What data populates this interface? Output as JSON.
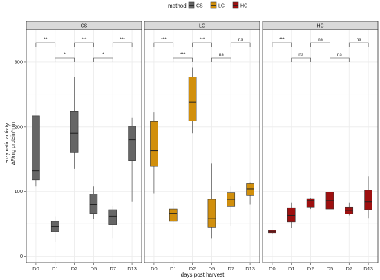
{
  "legend": {
    "title": "method",
    "items": [
      {
        "label": "CS",
        "color": "#666666"
      },
      {
        "label": "LC",
        "color": "#d18f0c"
      },
      {
        "label": "HC",
        "color": "#9e1010"
      }
    ]
  },
  "chart_data": {
    "type": "boxplot",
    "xlabel": "days post harvest",
    "ylabel_line1": "enzymatic activity",
    "ylabel_line2": "ΔF/mg protein*min",
    "ylim": [
      -10,
      350
    ],
    "yticks": [
      0,
      100,
      200,
      300
    ],
    "grid": true,
    "legend_position": "top",
    "categories": [
      "D0",
      "D1",
      "D2",
      "D5",
      "D7",
      "D13"
    ],
    "panels": [
      {
        "name": "CS",
        "color": "#666666",
        "boxes": [
          {
            "cat": "D0",
            "min": 108,
            "q1": 118,
            "median": 132,
            "q3": 217,
            "max": 217
          },
          {
            "cat": "D1",
            "min": 22,
            "q1": 38,
            "median": 46,
            "q3": 54,
            "max": 62
          },
          {
            "cat": "D2",
            "min": 135,
            "q1": 160,
            "median": 190,
            "q3": 224,
            "max": 277
          },
          {
            "cat": "D5",
            "min": 58,
            "q1": 66,
            "median": 80,
            "q3": 96,
            "max": 108
          },
          {
            "cat": "D7",
            "min": 28,
            "q1": 49,
            "median": 62,
            "q3": 72,
            "max": 78
          },
          {
            "cat": "D13",
            "min": 84,
            "q1": 148,
            "median": 180,
            "q3": 201,
            "max": 214
          }
        ],
        "brackets": [
          {
            "from": "D0",
            "to": "D1",
            "label": "**",
            "level": 0
          },
          {
            "from": "D1",
            "to": "D2",
            "label": "*",
            "level": 1
          },
          {
            "from": "D2",
            "to": "D5",
            "label": "***",
            "level": 0
          },
          {
            "from": "D5",
            "to": "D7",
            "label": "*",
            "level": 1
          },
          {
            "from": "D7",
            "to": "D13",
            "label": "***",
            "level": 0
          }
        ]
      },
      {
        "name": "LC",
        "color": "#d18f0c",
        "boxes": [
          {
            "cat": "D0",
            "min": 97,
            "q1": 139,
            "median": 163,
            "q3": 208,
            "max": 222
          },
          {
            "cat": "D1",
            "min": 53,
            "q1": 54,
            "median": 66,
            "q3": 73,
            "max": 86
          },
          {
            "cat": "D2",
            "min": 190,
            "q1": 209,
            "median": 238,
            "q3": 277,
            "max": 292
          },
          {
            "cat": "D5",
            "min": 28,
            "q1": 45,
            "median": 58,
            "q3": 88,
            "max": 143
          },
          {
            "cat": "D7",
            "min": 47,
            "q1": 77,
            "median": 88,
            "q3": 98,
            "max": 108
          },
          {
            "cat": "D13",
            "min": 80,
            "q1": 94,
            "median": 104,
            "q3": 112,
            "max": 114
          }
        ],
        "brackets": [
          {
            "from": "D0",
            "to": "D1",
            "label": "***",
            "level": 0
          },
          {
            "from": "D1",
            "to": "D2",
            "label": "***",
            "level": 1
          },
          {
            "from": "D2",
            "to": "D5",
            "label": "***",
            "level": 0
          },
          {
            "from": "D5",
            "to": "D7",
            "label": "ns",
            "level": 1
          },
          {
            "from": "D7",
            "to": "D13",
            "label": "ns",
            "level": 0
          }
        ]
      },
      {
        "name": "HC",
        "color": "#9e1010",
        "boxes": [
          {
            "cat": "D0",
            "min": 34,
            "q1": 36,
            "median": 38,
            "q3": 40,
            "max": 41
          },
          {
            "cat": "D1",
            "min": 44,
            "q1": 53,
            "median": 63,
            "q3": 75,
            "max": 83
          },
          {
            "cat": "D2",
            "min": 73,
            "q1": 76,
            "median": 86,
            "q3": 89,
            "max": 90
          },
          {
            "cat": "D5",
            "min": 50,
            "q1": 73,
            "median": 86,
            "q3": 99,
            "max": 106
          },
          {
            "cat": "D7",
            "min": 63,
            "q1": 65,
            "median": 71,
            "q3": 76,
            "max": 83
          },
          {
            "cat": "D13",
            "min": 59,
            "q1": 72,
            "median": 84,
            "q3": 102,
            "max": 124
          }
        ],
        "brackets": [
          {
            "from": "D0",
            "to": "D1",
            "label": "***",
            "level": 0
          },
          {
            "from": "D1",
            "to": "D2",
            "label": "ns",
            "level": 1
          },
          {
            "from": "D2",
            "to": "D5",
            "label": "ns",
            "level": 0
          },
          {
            "from": "D5",
            "to": "D7",
            "label": "ns",
            "level": 1
          },
          {
            "from": "D7",
            "to": "D13",
            "label": "ns",
            "level": 0
          }
        ]
      }
    ]
  }
}
